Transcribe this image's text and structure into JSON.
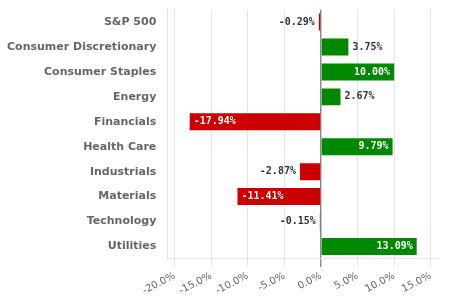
{
  "chart_data": {
    "type": "bar",
    "orientation": "horizontal",
    "categories": [
      "S&P 500",
      "Consumer Discretionary",
      "Consumer Staples",
      "Energy",
      "Financials",
      "Health Care",
      "Industrials",
      "Materials",
      "Technology",
      "Utilities"
    ],
    "values": [
      -0.29,
      3.75,
      10.0,
      2.67,
      -17.94,
      9.79,
      -2.87,
      -11.41,
      -0.15,
      13.09
    ],
    "value_labels": [
      "-0.29%",
      "3.75%",
      "10.00%",
      "2.67%",
      "-17.94%",
      "9.79%",
      "-2.87%",
      "-11.41%",
      "-0.15%",
      "13.09%"
    ],
    "data_labels": true,
    "colors": [
      "#CC0000",
      "#008800",
      "#008800",
      "#008800",
      "#CC0000",
      "#008800",
      "#CC0000",
      "#CC0000",
      "#CC0000",
      "#008800"
    ],
    "xlim": [
      -21,
      16
    ],
    "xticks": [
      {
        "value": -20,
        "label": "-20.0%"
      },
      {
        "value": -15,
        "label": "-15.0%"
      },
      {
        "value": -10,
        "label": "-10.0%"
      },
      {
        "value": -5,
        "label": "-5.0%"
      },
      {
        "value": 0,
        "label": "0.0%"
      },
      {
        "value": 5,
        "label": "5.0%"
      },
      {
        "value": 10,
        "label": "10.0%"
      },
      {
        "value": 15,
        "label": "15.0%"
      }
    ],
    "grid": true
  }
}
